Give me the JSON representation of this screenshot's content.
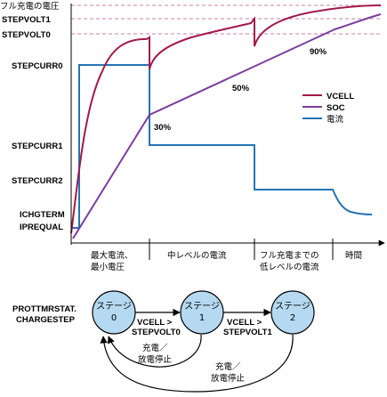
{
  "y_labels": {
    "full_charge_voltage": "フル充電の電圧",
    "stepvolt1": "STEPVOLT1",
    "stepvolt0": "STEPVOLT0",
    "stepcurr0": "STEPCURR0",
    "stepcurr1": "STEPCURR1",
    "stepcurr2": "STEPCURR2",
    "ichgterm": "ICHGTERM",
    "iprequal": "IPREQUAL"
  },
  "legend": {
    "vcell": "VCELL",
    "soc": "SOC",
    "current": "電流"
  },
  "colors": {
    "vcell": "#a3194a",
    "soc": "#7b3c9e",
    "current": "#2574b6",
    "stage_fill": "#b5d9f1",
    "guide": "#c7869c"
  },
  "percent_labels": {
    "p30": "30%",
    "p50": "50%",
    "p90": "90%"
  },
  "phases": {
    "phase1_line1": "最大電流、",
    "phase1_line2": "最小電圧",
    "phase2": "中レベルの電流",
    "phase3_line1": "フル充電までの",
    "phase3_line2": "低レベルの電流",
    "time": "時間"
  },
  "state_machine": {
    "register_line1": "PROTTMRSTAT.",
    "register_line2": "CHARGESTEP",
    "stage0_line1": "ステージ",
    "stage0_line2": "0",
    "stage1_line1": "ステージ",
    "stage1_line2": "1",
    "stage2_line1": "ステージ",
    "stage2_line2": "2",
    "t01_line1": "VCELL >",
    "t01_line2": "STEPVOLT0",
    "t12_line1": "VCELL >",
    "t12_line2": "STEPVOLT1",
    "back1_line1": "充電／",
    "back1_line2": "放電停止",
    "back2_line1": "充電／",
    "back2_line2": "放電停止"
  }
}
